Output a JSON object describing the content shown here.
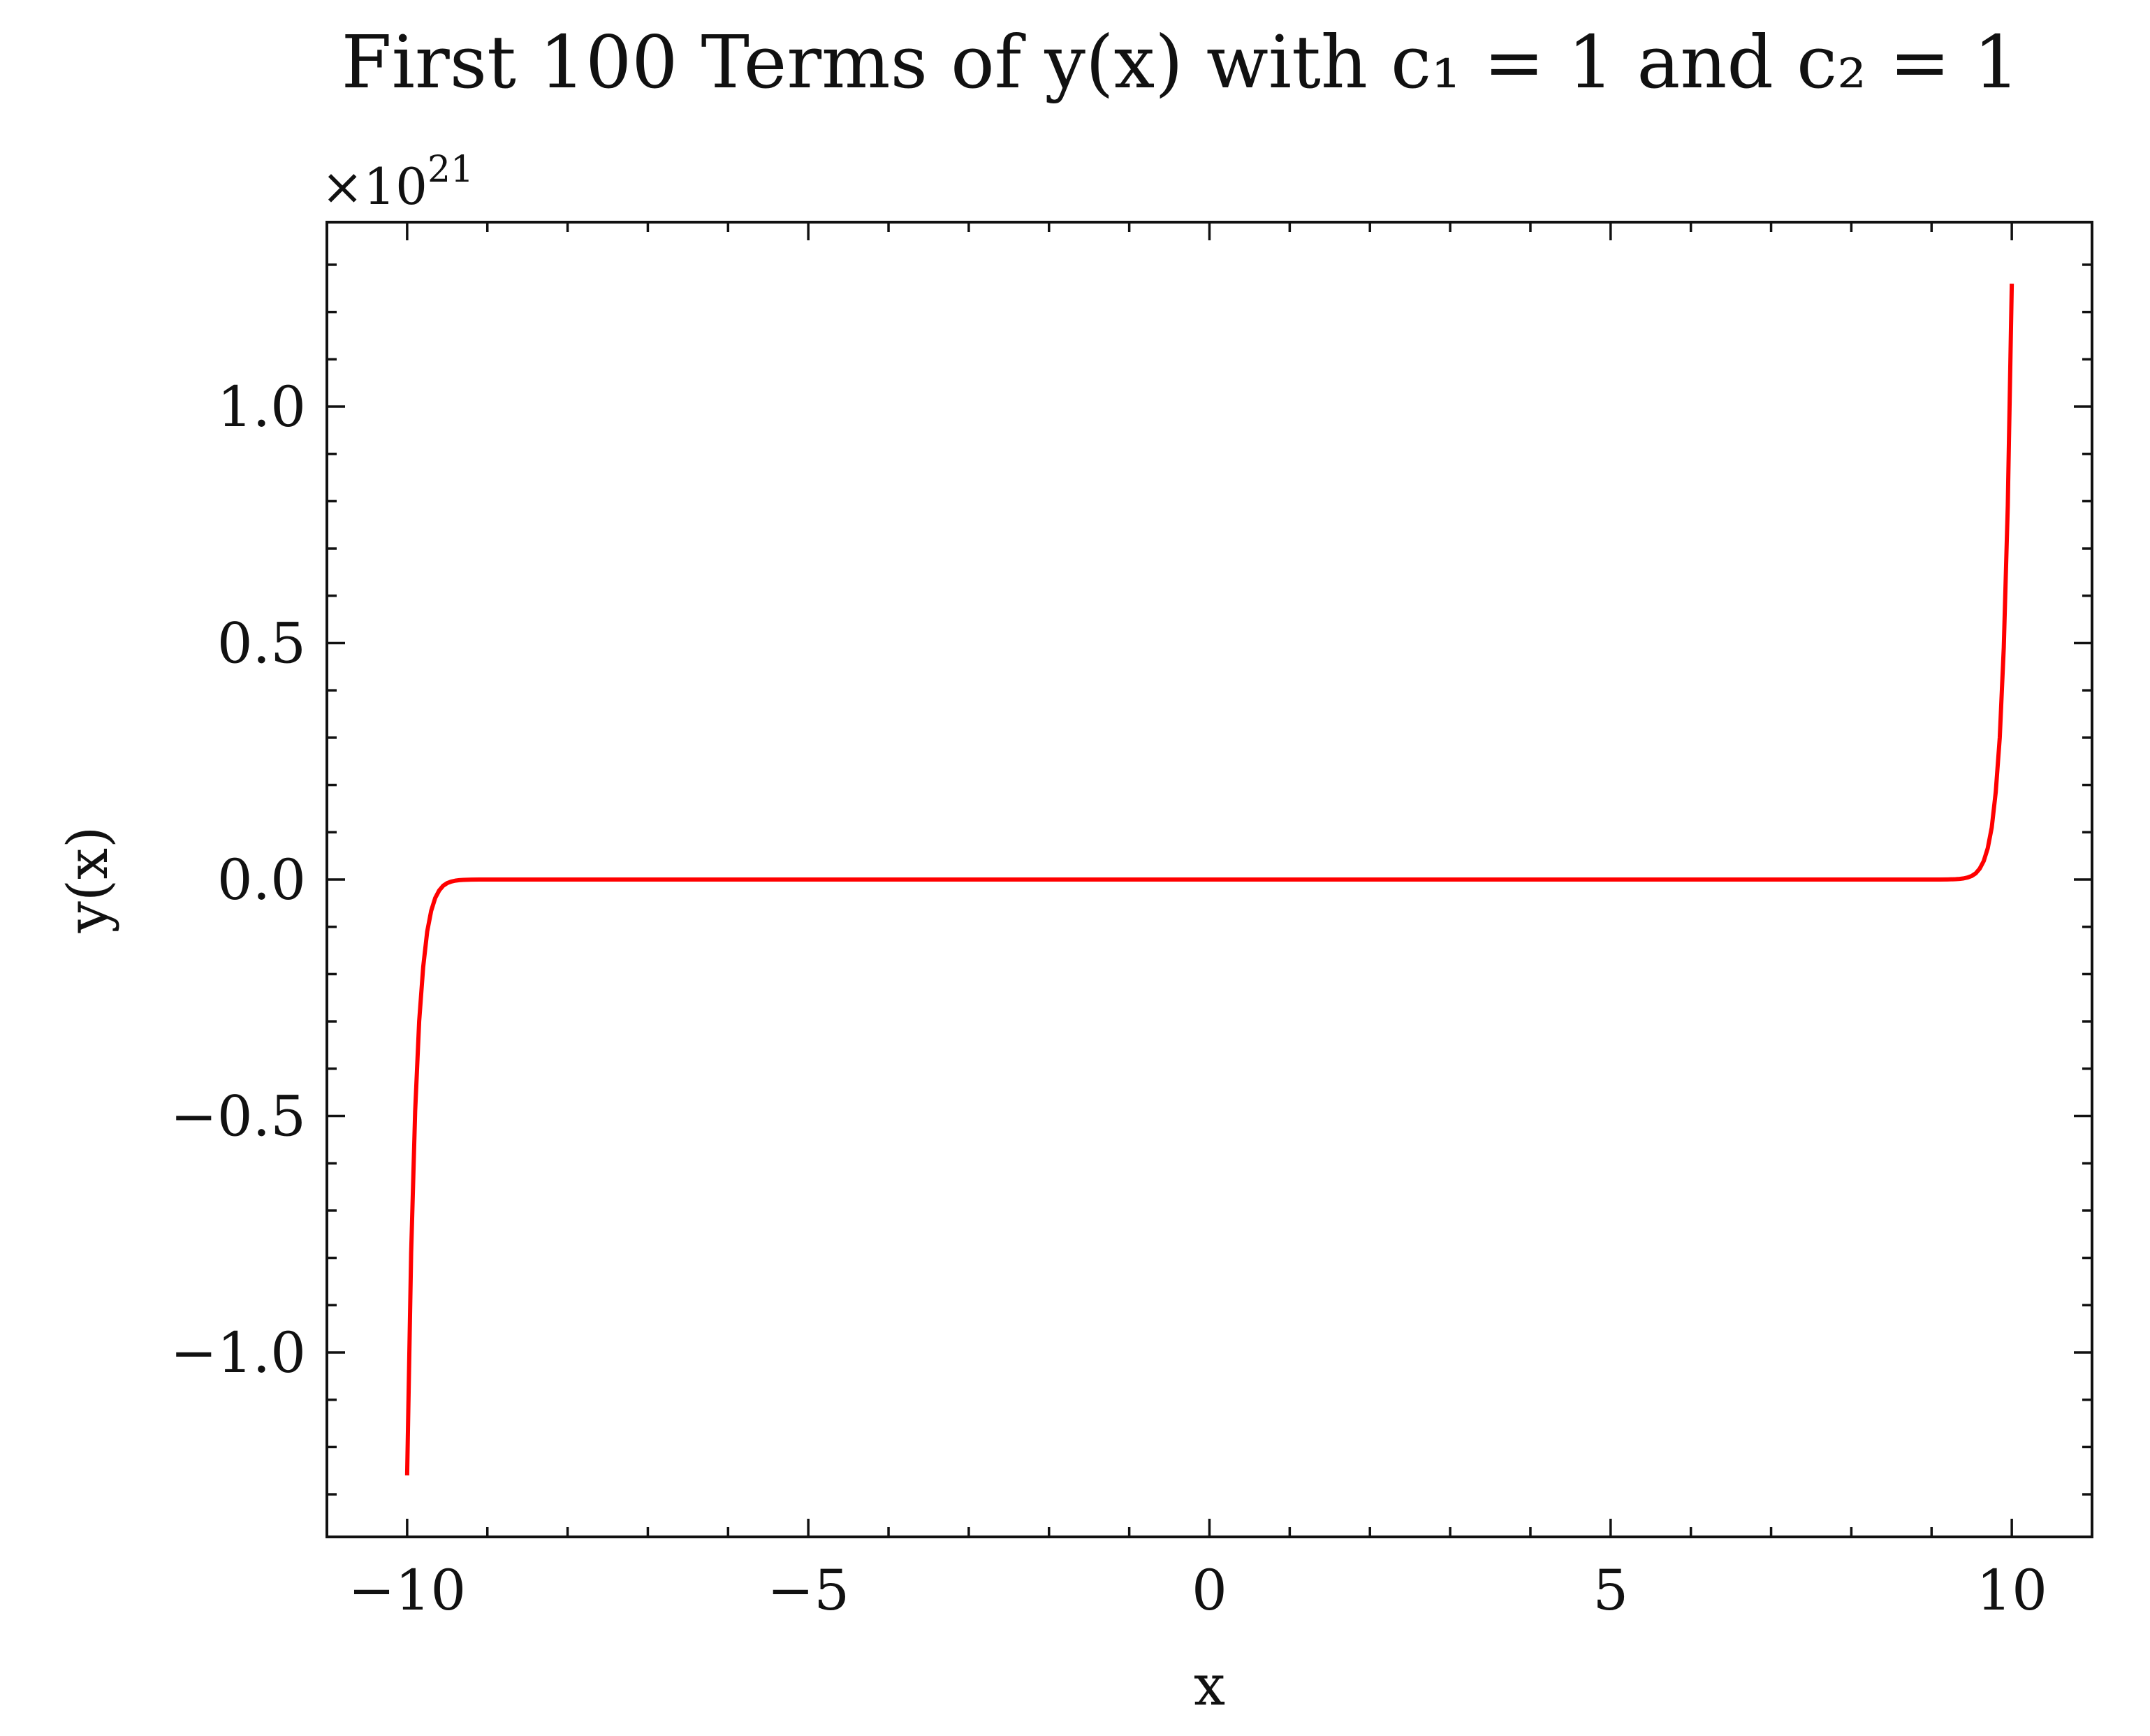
{
  "chart_data": {
    "type": "line",
    "title": "First 100 Terms of y(x) with c₁ = 1 and c₂ = 1",
    "xlabel": "x",
    "ylabel": "y(x)",
    "y_offset_label": "×10",
    "y_offset_exponent": "21",
    "xlim": [
      -11,
      11
    ],
    "ylim": [
      -1.39,
      1.39
    ],
    "y_scale_factor": 1e+21,
    "x_ticks": [
      {
        "value": -10,
        "label": "−10"
      },
      {
        "value": -5,
        "label": "−5"
      },
      {
        "value": 0,
        "label": "0"
      },
      {
        "value": 5,
        "label": "5"
      },
      {
        "value": 10,
        "label": "10"
      }
    ],
    "y_ticks": [
      {
        "value": -1.0,
        "label": "−1.0"
      },
      {
        "value": -0.5,
        "label": "−0.5"
      },
      {
        "value": 0.0,
        "label": "0.0"
      },
      {
        "value": 0.5,
        "label": "0.5"
      },
      {
        "value": 1.0,
        "label": "1.0"
      }
    ],
    "grid": false,
    "series": [
      {
        "color": "#ff0000",
        "x": [
          -10.0,
          -9.95,
          -9.9,
          -9.85,
          -9.8,
          -9.75,
          -9.7,
          -9.65,
          -9.6,
          -9.55,
          -9.5,
          -9.45,
          -9.4,
          -9.35,
          -9.3,
          -9.2,
          -9.1,
          -9.0,
          -8.5,
          -8.0,
          0.0,
          8.0,
          8.5,
          9.0,
          9.1,
          9.2,
          9.3,
          9.35,
          9.4,
          9.45,
          9.5,
          9.55,
          9.6,
          9.65,
          9.7,
          9.75,
          9.8,
          9.85,
          9.9,
          9.95,
          10.0
        ],
        "y": [
          -1.26,
          -0.79,
          -0.49,
          -0.3,
          -0.185,
          -0.11,
          -0.066,
          -0.039,
          -0.023,
          -0.013,
          -0.0075,
          -0.0043,
          -0.0024,
          -0.0013,
          -0.0007,
          -0.0002,
          -5e-05,
          0.0,
          0.0,
          0.0,
          0.0,
          0.0,
          0.0,
          0.0,
          5e-05,
          0.0002,
          0.0007,
          0.0013,
          0.0024,
          0.0043,
          0.0075,
          0.013,
          0.023,
          0.039,
          0.066,
          0.11,
          0.185,
          0.3,
          0.49,
          0.79,
          1.26
        ]
      }
    ]
  }
}
